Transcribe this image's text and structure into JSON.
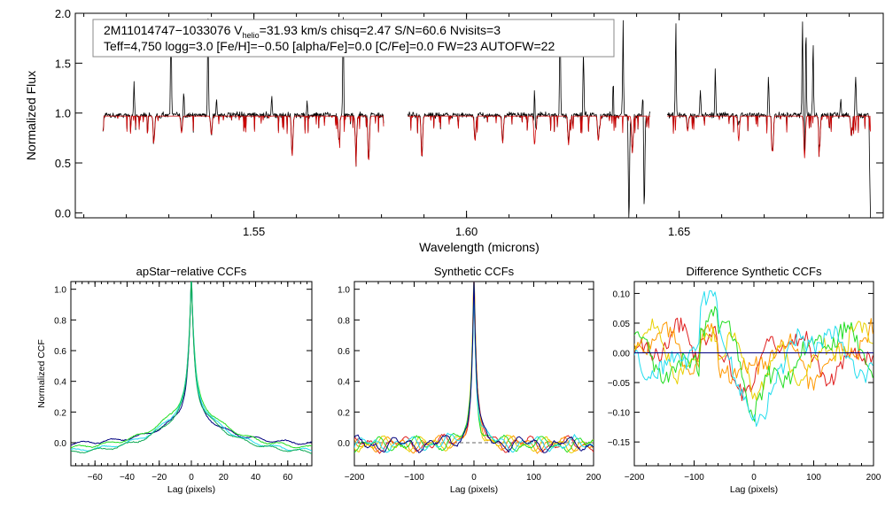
{
  "chart_data": [
    {
      "type": "line",
      "name": "spectrum",
      "header": {
        "star": "2M11014747−1033076",
        "vhelio_prefix": "V",
        "vhelio_sub": "helio",
        "vhelio_rest": "=31.93 km/s  chisq=2.47  S/N=60.6  Nvisits=3",
        "line2": "Teff=4,750 logg=3.0 [Fe/H]=−0.50 [alpha/Fe]=0.0 [C/Fe]=0.0 FW=23 AUTOFW=22"
      },
      "xlabel": "Wavelength (microns)",
      "ylabel": "Normalized Flux",
      "xlim": [
        1.508,
        1.698
      ],
      "ylim": [
        -0.05,
        2.0
      ],
      "xticks": [
        {
          "v": 1.55,
          "label": "1.55"
        },
        {
          "v": 1.6,
          "label": "1.60"
        },
        {
          "v": 1.65,
          "label": "1.65"
        }
      ],
      "yticks": [
        {
          "v": 0.0,
          "label": "0.0"
        },
        {
          "v": 0.5,
          "label": "0.5"
        },
        {
          "v": 1.0,
          "label": "1.0"
        },
        {
          "v": 1.5,
          "label": "1.5"
        },
        {
          "v": 2.0,
          "label": "2.0"
        }
      ],
      "chips": [
        [
          1.5145,
          1.5805
        ],
        [
          1.5862,
          1.6432
        ],
        [
          1.6472,
          1.695
        ]
      ],
      "emission_spikes": [
        {
          "x": 1.5218,
          "y": 1.35
        },
        {
          "x": 1.5305,
          "y": 2.0
        },
        {
          "x": 1.5335,
          "y": 1.25
        },
        {
          "x": 1.5392,
          "y": 2.0
        },
        {
          "x": 1.5412,
          "y": 1.15
        },
        {
          "x": 1.5542,
          "y": 1.2
        },
        {
          "x": 1.5625,
          "y": 1.13
        },
        {
          "x": 1.571,
          "y": 2.0
        },
        {
          "x": 1.616,
          "y": 1.55
        },
        {
          "x": 1.622,
          "y": 2.0
        },
        {
          "x": 1.6275,
          "y": 1.65
        },
        {
          "x": 1.6345,
          "y": 1.32
        },
        {
          "x": 1.6368,
          "y": 2.0
        },
        {
          "x": 1.6415,
          "y": 1.28
        },
        {
          "x": 1.6492,
          "y": 2.0
        },
        {
          "x": 1.655,
          "y": 1.25
        },
        {
          "x": 1.6585,
          "y": 1.45
        },
        {
          "x": 1.664,
          "y": 1.2
        },
        {
          "x": 1.671,
          "y": 1.4
        },
        {
          "x": 1.679,
          "y": 2.0
        },
        {
          "x": 1.6798,
          "y": 2.0
        },
        {
          "x": 1.6815,
          "y": 1.8
        },
        {
          "x": 1.6915,
          "y": 1.55
        },
        {
          "x": 1.688,
          "y": 1.18
        }
      ],
      "absorption_lines": [
        {
          "x": 1.5265,
          "y": 0.72
        },
        {
          "x": 1.533,
          "y": 0.8
        },
        {
          "x": 1.54,
          "y": 0.78
        },
        {
          "x": 1.559,
          "y": 0.57
        },
        {
          "x": 1.57,
          "y": 0.72
        },
        {
          "x": 1.574,
          "y": 0.62
        },
        {
          "x": 1.577,
          "y": 0.53
        },
        {
          "x": 1.5895,
          "y": 0.55
        },
        {
          "x": 1.602,
          "y": 0.72
        },
        {
          "x": 1.6085,
          "y": 0.7
        },
        {
          "x": 1.616,
          "y": 0.68
        },
        {
          "x": 1.624,
          "y": 0.68
        },
        {
          "x": 1.631,
          "y": 0.72
        },
        {
          "x": 1.639,
          "y": 0.6
        },
        {
          "x": 1.652,
          "y": 0.82
        },
        {
          "x": 1.664,
          "y": 0.72
        },
        {
          "x": 1.672,
          "y": 0.6
        },
        {
          "x": 1.6795,
          "y": 0.55
        },
        {
          "x": 1.683,
          "y": 0.65
        },
        {
          "x": 1.6905,
          "y": 0.78
        }
      ],
      "dropouts": [
        {
          "x": 1.6382,
          "y": -0.05
        },
        {
          "x": 1.6418,
          "y": 0.05
        },
        {
          "x": 1.695,
          "y": -0.05
        }
      ],
      "series": [
        {
          "name": "observed",
          "color": "#000000"
        },
        {
          "name": "model",
          "color": "#cc0000"
        }
      ]
    },
    {
      "type": "line",
      "name": "apstar-ccf",
      "title": "apStar−relative CCFs",
      "xlabel": "Lag (pixels)",
      "ylabel": "Normalized CCF",
      "xlim": [
        -75,
        75
      ],
      "ylim": [
        -0.15,
        1.05
      ],
      "xticks": [
        {
          "v": -60,
          "label": "−60"
        },
        {
          "v": -40,
          "label": "−40"
        },
        {
          "v": -20,
          "label": "−20"
        },
        {
          "v": 0,
          "label": "0"
        },
        {
          "v": 20,
          "label": "20"
        },
        {
          "v": 40,
          "label": "40"
        },
        {
          "v": 60,
          "label": "60"
        }
      ],
      "yticks": [
        {
          "v": 0.0,
          "label": "0.0"
        },
        {
          "v": 0.2,
          "label": "0.2"
        },
        {
          "v": 0.4,
          "label": "0.4"
        },
        {
          "v": 0.6,
          "label": "0.6"
        },
        {
          "v": 0.8,
          "label": "0.8"
        },
        {
          "v": 1.0,
          "label": "1.0"
        }
      ],
      "series": [
        {
          "name": "navy",
          "color": "#000080",
          "peak": 0.99,
          "wing": 0.22,
          "width": 5.2,
          "base": -0.02
        },
        {
          "name": "green",
          "color": "#22dd22",
          "peak": 0.98,
          "wing": 0.3,
          "width": 8.0,
          "base": -0.05
        },
        {
          "name": "cyan",
          "color": "#22ddee",
          "peak": 0.97,
          "wing": 0.31,
          "width": 7.6,
          "base": -0.07
        },
        {
          "name": "green2",
          "color": "#11aa55",
          "peak": 0.96,
          "wing": 0.29,
          "width": 7.8,
          "base": -0.08
        }
      ]
    },
    {
      "type": "line",
      "name": "synthetic-ccf",
      "title": "Synthetic CCFs",
      "xlabel": "Lag (pixels)",
      "ylabel": "",
      "xlim": [
        -200,
        200
      ],
      "ylim": [
        -0.15,
        1.05
      ],
      "xticks": [
        {
          "v": -200,
          "label": "−200"
        },
        {
          "v": -100,
          "label": "−100"
        },
        {
          "v": 0,
          "label": "0"
        },
        {
          "v": 100,
          "label": "100"
        },
        {
          "v": 200,
          "label": "200"
        }
      ],
      "yticks": [
        {
          "v": 0.0,
          "label": "0.0"
        },
        {
          "v": 0.2,
          "label": "0.2"
        },
        {
          "v": 0.4,
          "label": "0.4"
        },
        {
          "v": 0.6,
          "label": "0.6"
        },
        {
          "v": 0.8,
          "label": "0.8"
        },
        {
          "v": 1.0,
          "label": "1.0"
        }
      ],
      "series": [
        {
          "name": "red",
          "color": "#e02020",
          "peak": 0.99
        },
        {
          "name": "orange",
          "color": "#ff9900",
          "peak": 0.97
        },
        {
          "name": "yellow",
          "color": "#e8d000",
          "peak": 0.95
        },
        {
          "name": "green",
          "color": "#22dd22",
          "peak": 0.93
        },
        {
          "name": "cyan",
          "color": "#22ddee",
          "peak": 0.92
        },
        {
          "name": "navy",
          "color": "#000080",
          "peak": 0.96
        }
      ]
    },
    {
      "type": "line",
      "name": "difference-ccf",
      "title": "Difference Synthetic CCFs",
      "xlabel": "Lag (pixels)",
      "ylabel": "",
      "xlim": [
        -200,
        200
      ],
      "ylim": [
        -0.19,
        0.12
      ],
      "xticks": [
        {
          "v": -200,
          "label": "−200"
        },
        {
          "v": -100,
          "label": "−100"
        },
        {
          "v": 0,
          "label": "0"
        },
        {
          "v": 100,
          "label": "100"
        },
        {
          "v": 200,
          "label": "200"
        }
      ],
      "yticks": [
        {
          "v": -0.15,
          "label": "−0.15"
        },
        {
          "v": -0.1,
          "label": "−0.10"
        },
        {
          "v": -0.05,
          "label": "−0.05"
        },
        {
          "v": 0.0,
          "label": "0.00"
        },
        {
          "v": 0.05,
          "label": "0.05"
        },
        {
          "v": 0.1,
          "label": "0.10"
        }
      ],
      "series": [
        {
          "name": "red",
          "color": "#e02020"
        },
        {
          "name": "orange",
          "color": "#ff9900"
        },
        {
          "name": "yellow",
          "color": "#e8d000"
        },
        {
          "name": "green",
          "color": "#22dd22"
        },
        {
          "name": "cyan",
          "color": "#22ddee"
        },
        {
          "name": "navy",
          "color": "#000080"
        }
      ]
    }
  ]
}
